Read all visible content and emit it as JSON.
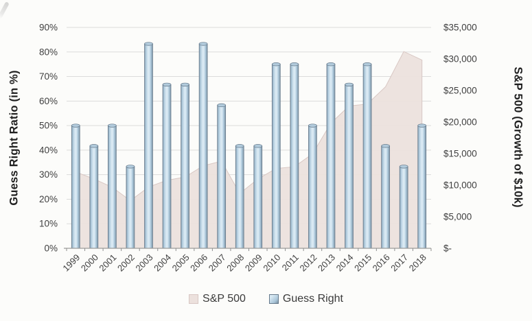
{
  "chart_data": {
    "type": "combo",
    "categories": [
      "1999",
      "2000",
      "2001",
      "2002",
      "2003",
      "2004",
      "2005",
      "2006",
      "2007",
      "2008",
      "2009",
      "2010",
      "2011",
      "2012",
      "2013",
      "2014",
      "2015",
      "2016",
      "2017",
      "2018"
    ],
    "series": [
      {
        "name": "S&P 500",
        "type": "area",
        "axis": "right",
        "values": [
          12100,
          11000,
          9690,
          7550,
          9710,
          10770,
          11290,
          13080,
          13800,
          8690,
          10990,
          12650,
          12910,
          14980,
          19830,
          22550,
          22860,
          25600,
          31190,
          29830
        ]
      },
      {
        "name": "Guess Right",
        "type": "column",
        "axis": "left",
        "values": [
          50,
          41.7,
          50,
          33.3,
          83.3,
          66.7,
          66.7,
          83.3,
          58.3,
          41.7,
          41.7,
          75,
          75,
          50,
          75,
          66.7,
          75,
          41.7,
          33.3,
          50
        ]
      }
    ],
    "left_axis": {
      "title": "Guess Right Ratio (in %)",
      "min": 0,
      "max": 90,
      "step": 10,
      "tick_labels": [
        "0%",
        "10%",
        "20%",
        "30%",
        "40%",
        "50%",
        "60%",
        "70%",
        "80%",
        "90%"
      ]
    },
    "right_axis": {
      "title": "S&P 500 (Growth of $10k)",
      "min": 0,
      "max": 35000,
      "step": 5000,
      "tick_labels": [
        "$-",
        "$5,000",
        "$10,000",
        "$15,000",
        "$20,000",
        "$25,000",
        "$30,000",
        "$35,000"
      ]
    },
    "legend": [
      {
        "label": "S&P 500",
        "swatch": "area"
      },
      {
        "label": "Guess Right",
        "swatch": "column"
      }
    ],
    "grid": "on",
    "legend_position": "bottom"
  },
  "colors": {
    "background": "#fcfcfa",
    "grid": "#dbdbdb",
    "axis_line": "#9b9b9b",
    "tick_mark": "#8f8f8f",
    "tick_text": "#404040",
    "area_fill": "#ece1dd",
    "area_border": "#d8c7c3",
    "bar_fill": "#aac6d9",
    "bar_light": "#d9e9f3",
    "bar_dark": "#7b90a0",
    "bar_edge": "#64788a",
    "bar_cap": "#b2cbdc"
  }
}
